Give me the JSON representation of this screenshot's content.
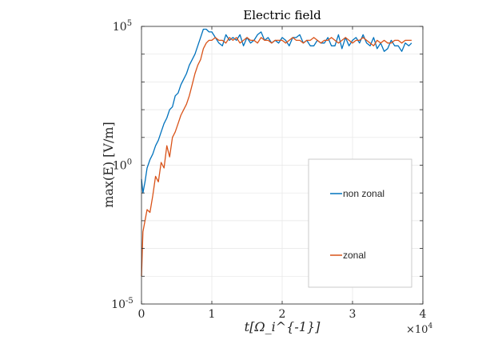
{
  "chart_data": {
    "type": "line",
    "title": "Electric field",
    "xlabel": "t[Ω_i^{-1}]",
    "ylabel": "max(E) [V/m]",
    "x_multiplier_label": "×10",
    "x_multiplier_exp": "4",
    "xlim": [
      0,
      4
    ],
    "ylim_log10": [
      -5,
      5
    ],
    "y_scale": "log",
    "grid": true,
    "x_ticks": [
      {
        "value": 0,
        "label": "0"
      },
      {
        "value": 1,
        "label": "1"
      },
      {
        "value": 2,
        "label": "2"
      },
      {
        "value": 3,
        "label": "3"
      },
      {
        "value": 4,
        "label": "4"
      }
    ],
    "y_ticks": [
      {
        "log10": 5,
        "base": "10",
        "exp": "5"
      },
      {
        "log10": 0,
        "base": "10",
        "exp": "0"
      },
      {
        "log10": -5,
        "base": "10",
        "exp": "-5"
      }
    ],
    "legend_position": "lower-right",
    "series": [
      {
        "name": "non zonal",
        "color": "#0072BD",
        "x": [
          0.0,
          0.02,
          0.05,
          0.08,
          0.12,
          0.16,
          0.2,
          0.24,
          0.28,
          0.32,
          0.36,
          0.4,
          0.44,
          0.48,
          0.52,
          0.56,
          0.6,
          0.64,
          0.68,
          0.72,
          0.76,
          0.8,
          0.84,
          0.88,
          0.92,
          0.96,
          1.0,
          1.05,
          1.1,
          1.15,
          1.2,
          1.25,
          1.3,
          1.35,
          1.4,
          1.45,
          1.5,
          1.55,
          1.6,
          1.65,
          1.7,
          1.75,
          1.8,
          1.85,
          1.9,
          1.95,
          2.0,
          2.05,
          2.1,
          2.15,
          2.2,
          2.25,
          2.3,
          2.35,
          2.4,
          2.45,
          2.5,
          2.55,
          2.6,
          2.65,
          2.7,
          2.75,
          2.8,
          2.85,
          2.9,
          2.95,
          3.0,
          3.05,
          3.1,
          3.15,
          3.2,
          3.25,
          3.3,
          3.35,
          3.4,
          3.45,
          3.5,
          3.55,
          3.6,
          3.65,
          3.7,
          3.75,
          3.8,
          3.84
        ],
        "log10_y": [
          -0.5,
          -1.0,
          -0.6,
          -0.1,
          0.2,
          0.4,
          0.7,
          0.9,
          1.2,
          1.5,
          1.7,
          2.0,
          2.1,
          2.5,
          2.6,
          2.9,
          3.1,
          3.3,
          3.6,
          3.8,
          4.0,
          4.3,
          4.6,
          4.9,
          4.9,
          4.8,
          4.8,
          4.6,
          4.4,
          4.3,
          4.7,
          4.5,
          4.6,
          4.5,
          4.7,
          4.3,
          4.6,
          4.4,
          4.5,
          4.7,
          4.8,
          4.5,
          4.6,
          4.4,
          4.5,
          4.4,
          4.6,
          4.5,
          4.3,
          4.6,
          4.6,
          4.7,
          4.4,
          4.5,
          4.3,
          4.3,
          4.5,
          4.4,
          4.4,
          4.6,
          4.3,
          4.3,
          4.7,
          4.2,
          4.6,
          4.3,
          4.5,
          4.6,
          4.4,
          4.7,
          4.4,
          4.3,
          4.6,
          4.2,
          4.4,
          4.1,
          4.2,
          4.5,
          4.3,
          4.3,
          4.1,
          4.4,
          4.3,
          4.4
        ]
      },
      {
        "name": "zonal",
        "color": "#D95319",
        "x": [
          0.0,
          0.02,
          0.05,
          0.08,
          0.12,
          0.16,
          0.2,
          0.24,
          0.28,
          0.32,
          0.36,
          0.4,
          0.44,
          0.48,
          0.52,
          0.56,
          0.6,
          0.64,
          0.68,
          0.72,
          0.76,
          0.8,
          0.84,
          0.88,
          0.92,
          0.96,
          1.0,
          1.05,
          1.1,
          1.15,
          1.2,
          1.25,
          1.3,
          1.35,
          1.4,
          1.45,
          1.5,
          1.55,
          1.6,
          1.65,
          1.7,
          1.75,
          1.8,
          1.85,
          1.9,
          1.95,
          2.0,
          2.05,
          2.1,
          2.15,
          2.2,
          2.25,
          2.3,
          2.35,
          2.4,
          2.45,
          2.5,
          2.55,
          2.6,
          2.65,
          2.7,
          2.75,
          2.8,
          2.85,
          2.9,
          2.95,
          3.0,
          3.05,
          3.1,
          3.15,
          3.2,
          3.25,
          3.3,
          3.35,
          3.4,
          3.45,
          3.5,
          3.55,
          3.6,
          3.65,
          3.7,
          3.75,
          3.8,
          3.84
        ],
        "log10_y": [
          -4.0,
          -2.4,
          -2.0,
          -1.6,
          -1.7,
          -1.1,
          -0.4,
          -0.6,
          0.1,
          -0.1,
          0.7,
          0.3,
          1.0,
          1.2,
          1.5,
          1.8,
          2.0,
          2.2,
          2.5,
          2.9,
          3.3,
          3.6,
          3.8,
          4.2,
          4.4,
          4.5,
          4.5,
          4.6,
          4.5,
          4.5,
          4.4,
          4.6,
          4.5,
          4.6,
          4.4,
          4.5,
          4.6,
          4.5,
          4.5,
          4.4,
          4.6,
          4.5,
          4.5,
          4.4,
          4.5,
          4.5,
          4.5,
          4.4,
          4.5,
          4.6,
          4.5,
          4.5,
          4.4,
          4.5,
          4.5,
          4.6,
          4.5,
          4.4,
          4.5,
          4.5,
          4.6,
          4.5,
          4.4,
          4.5,
          4.6,
          4.5,
          4.4,
          4.5,
          4.5,
          4.6,
          4.5,
          4.4,
          4.3,
          4.5,
          4.4,
          4.5,
          4.4,
          4.4,
          4.5,
          4.5,
          4.4,
          4.5,
          4.5,
          4.5
        ]
      }
    ]
  }
}
